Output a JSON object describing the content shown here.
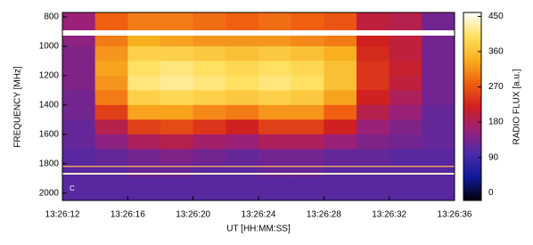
{
  "chart_data": {
    "type": "heatmap",
    "xlabel": "UT [HH:MM:SS]",
    "ylabel": "FREQUENCY [MHz]",
    "zlabel": "RADIO FLUX [a.u.]",
    "annotation": "C",
    "xbins": [
      "13:26:12",
      "13:26:14",
      "13:26:16",
      "13:26:18",
      "13:26:20",
      "13:26:22",
      "13:26:24",
      "13:26:26",
      "13:26:28",
      "13:26:30",
      "13:26:32",
      "13:26:34",
      "13:26:36"
    ],
    "ybins": [
      770,
      900,
      1000,
      1100,
      1200,
      1300,
      1400,
      1500,
      1600,
      1700,
      1800,
      1900,
      2050
    ],
    "z": [
      [
        160,
        280,
        300,
        300,
        290,
        280,
        290,
        280,
        270,
        200,
        190,
        130
      ],
      [
        150,
        300,
        340,
        330,
        320,
        320,
        320,
        310,
        300,
        220,
        200,
        130
      ],
      [
        140,
        320,
        380,
        380,
        370,
        360,
        370,
        360,
        340,
        230,
        200,
        130
      ],
      [
        140,
        330,
        400,
        410,
        400,
        390,
        400,
        390,
        360,
        240,
        210,
        130
      ],
      [
        140,
        320,
        410,
        420,
        410,
        400,
        410,
        400,
        360,
        240,
        200,
        130
      ],
      [
        130,
        300,
        380,
        390,
        380,
        370,
        380,
        370,
        330,
        220,
        180,
        130
      ],
      [
        130,
        250,
        330,
        330,
        310,
        300,
        320,
        320,
        280,
        190,
        160,
        120
      ],
      [
        120,
        190,
        250,
        260,
        240,
        220,
        250,
        250,
        220,
        160,
        140,
        120
      ],
      [
        120,
        150,
        180,
        190,
        170,
        160,
        180,
        180,
        160,
        140,
        130,
        120
      ],
      [
        110,
        120,
        130,
        140,
        130,
        120,
        130,
        130,
        120,
        120,
        110,
        110
      ],
      [
        110,
        110,
        120,
        120,
        110,
        110,
        120,
        120,
        110,
        110,
        110,
        110
      ],
      [
        110,
        110,
        110,
        110,
        110,
        110,
        110,
        110,
        110,
        110,
        110,
        110
      ]
    ],
    "xlim": [
      "13:26:12",
      "13:26:36"
    ],
    "xticks": [
      "13:26:12",
      "13:26:16",
      "13:26:20",
      "13:26:24",
      "13:26:28",
      "13:26:32",
      "13:26:36"
    ],
    "ylim": [
      2050,
      770
    ],
    "yticks": [
      800,
      1000,
      1200,
      1400,
      1600,
      1800,
      2000
    ],
    "zlim": [
      -20,
      460
    ],
    "zticks": [
      0,
      90,
      180,
      270,
      360,
      450
    ],
    "colormap": [
      "#00000a",
      "#101a9a",
      "#4a2aa8",
      "#9a2078",
      "#d02020",
      "#f06010",
      "#f8b020",
      "#ffe060",
      "#ffffff"
    ]
  }
}
